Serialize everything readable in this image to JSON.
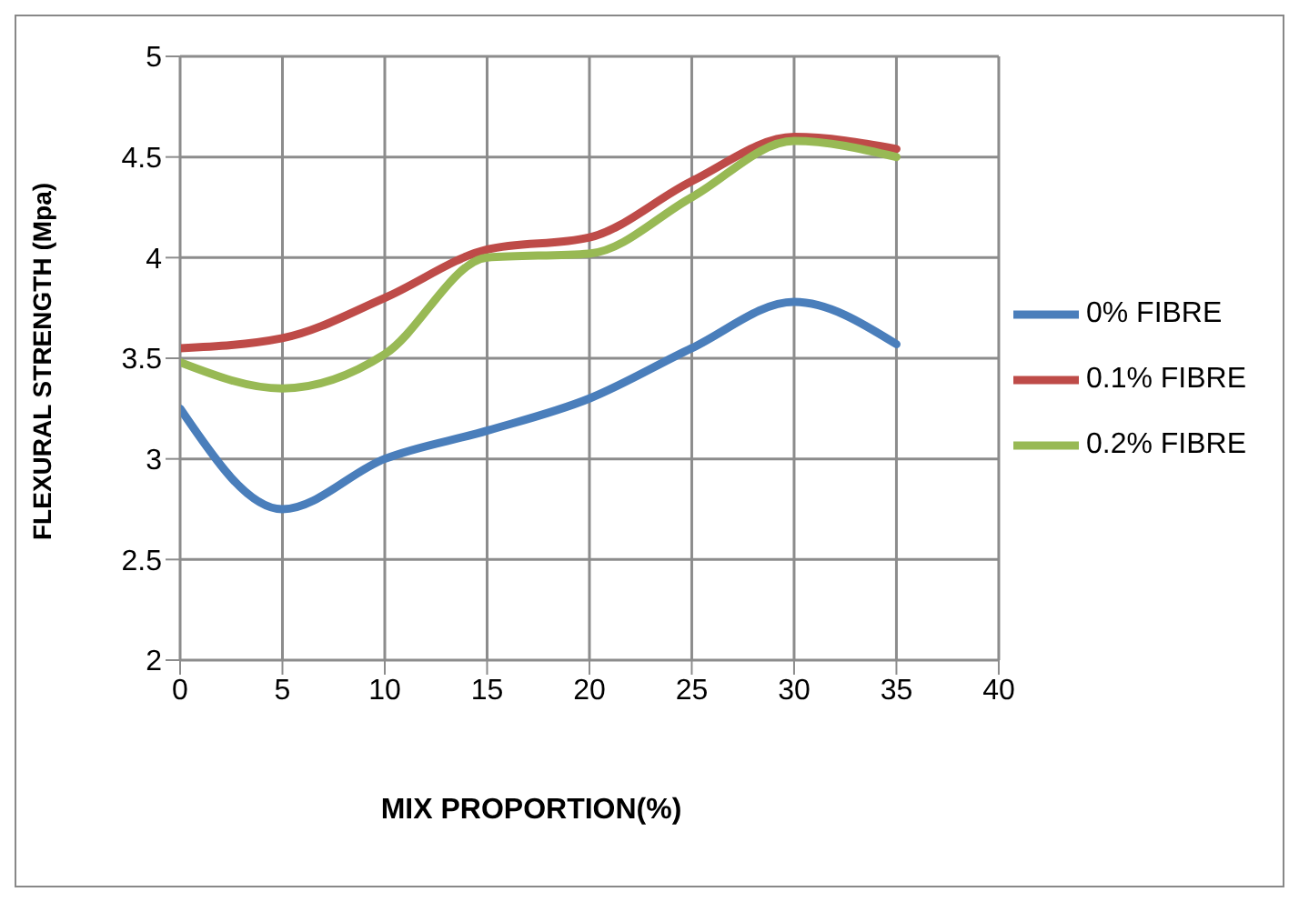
{
  "chart_data": {
    "type": "line",
    "xlabel": "MIX PROPORTION(%)",
    "ylabel": "FLEXURAL STRENGTH (Mpa)",
    "x": [
      0,
      5,
      10,
      15,
      20,
      25,
      30,
      35
    ],
    "series": [
      {
        "name": "0% FIBRE",
        "color": "#4a7ebb",
        "values": [
          3.25,
          2.75,
          3.0,
          3.14,
          3.3,
          3.55,
          3.78,
          3.57
        ]
      },
      {
        "name": "0.1% FIBRE",
        "color": "#be4b48",
        "values": [
          3.55,
          3.6,
          3.8,
          4.04,
          4.1,
          4.38,
          4.6,
          4.54
        ]
      },
      {
        "name": "0.2% FIBRE",
        "color": "#98b954",
        "values": [
          3.48,
          3.35,
          3.52,
          4.0,
          4.02,
          4.3,
          4.58,
          4.5
        ]
      }
    ],
    "xlim": [
      0,
      40
    ],
    "xticks": [
      0,
      5,
      10,
      15,
      20,
      25,
      30,
      35,
      40
    ],
    "ylim": [
      2,
      5
    ],
    "yticks": [
      2,
      2.5,
      3,
      3.5,
      4,
      4.5,
      5
    ],
    "grid": true,
    "legend": "right",
    "marker": "none",
    "line_style": "solid"
  }
}
